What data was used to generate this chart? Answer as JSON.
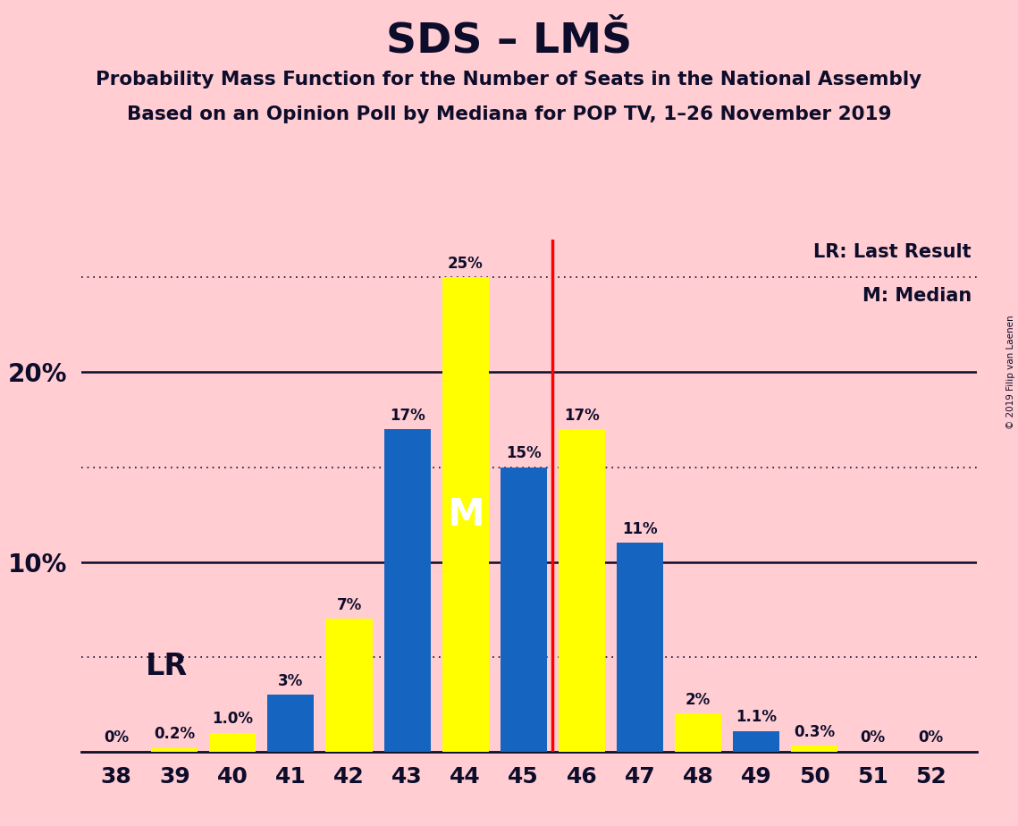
{
  "title": "SDS – LMŠ",
  "subtitle1": "Probability Mass Function for the Number of Seats in the National Assembly",
  "subtitle2": "Based on an Opinion Poll by Mediana for POP TV, 1–26 November 2019",
  "copyright": "© 2019 Filip van Laenen",
  "seats": [
    38,
    39,
    40,
    41,
    42,
    43,
    44,
    45,
    46,
    47,
    48,
    49,
    50,
    51,
    52
  ],
  "pmf_values": [
    0.0,
    0.2,
    1.0,
    3.0,
    7.0,
    17.0,
    25.0,
    15.0,
    17.0,
    11.0,
    2.0,
    1.1,
    0.3,
    0.0,
    0.0
  ],
  "bar_colors_blue": [
    false,
    false,
    false,
    true,
    false,
    true,
    false,
    true,
    false,
    true,
    false,
    true,
    false,
    false,
    false
  ],
  "median_seat": 44,
  "last_result_seat": 45.5,
  "median_label": "M",
  "lr_label": "LR",
  "legend_lr": "LR: Last Result",
  "legend_m": "M: Median",
  "background_color": "#FFCDD2",
  "bar_color_yellow": "#FFFF00",
  "bar_color_blue": "#1565C0",
  "vline_color": "#FF0000",
  "axis_color": "#0D0D2B",
  "grid_color": "#0D0D2B",
  "ylim": [
    0,
    27
  ],
  "major_yticks": [
    10,
    20
  ],
  "dotted_yticks": [
    5,
    15,
    25
  ],
  "bar_width": 0.8,
  "bar_labels": [
    "0%",
    "0.2%",
    "1.0%",
    "3%",
    "7%",
    "17%",
    "25%",
    "15%",
    "17%",
    "11%",
    "2%",
    "1.1%",
    "0.3%",
    "0%",
    "0%"
  ]
}
